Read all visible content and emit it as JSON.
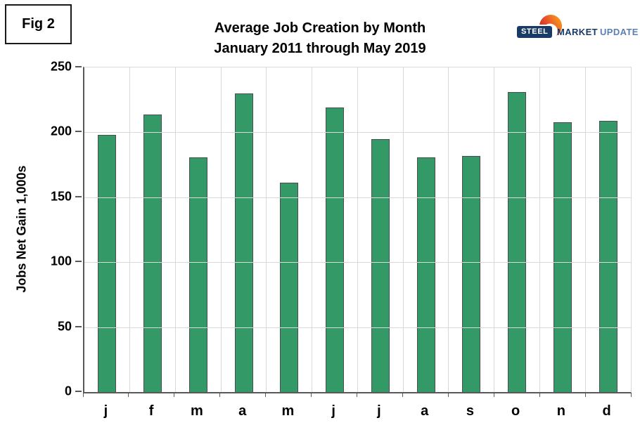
{
  "fig_label": "Fig 2",
  "title": {
    "line1": "Average Job Creation by Month",
    "line2": "January 2011 through May 2019"
  },
  "logo": {
    "steel": "STEEL",
    "market": "MARKET",
    "update": "UPDATE",
    "navy": "#173a66",
    "light_blue": "#5b7fb4",
    "crescent_colors": [
      "#c21e25",
      "#e8502a",
      "#f7a11b"
    ]
  },
  "chart_data": {
    "type": "bar",
    "title": "Average Job Creation by Month — January 2011 through May 2019",
    "categories": [
      "j",
      "f",
      "m",
      "a",
      "m",
      "j",
      "j",
      "a",
      "s",
      "o",
      "n",
      "d"
    ],
    "values": [
      198,
      214,
      181,
      230,
      161,
      219,
      195,
      181,
      182,
      231,
      208,
      209
    ],
    "xlabel": "",
    "ylabel": "Jobs Net Gain 1,000s",
    "ylim": [
      0,
      250
    ],
    "yticks": [
      0,
      50,
      100,
      150,
      200,
      250
    ],
    "grid": true,
    "legend": "none",
    "bar_color": "#339966",
    "bar_border_color": "#4d4d4d",
    "gridline_color": "#d9d9d9",
    "axis_color": "#595959"
  }
}
